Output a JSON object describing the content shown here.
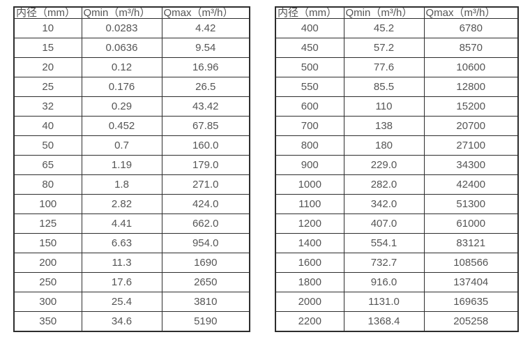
{
  "page": {
    "background_color": "#ffffff",
    "border_color": "#2d2d2d",
    "text_color": "#555555"
  },
  "chart_data": [
    {
      "type": "table",
      "title": "",
      "headers": [
        "内径（mm）",
        "Qmin（m³/h）",
        "Qmax（m³/h）"
      ],
      "rows": [
        [
          "10",
          "0.0283",
          "4.42"
        ],
        [
          "15",
          "0.0636",
          "9.54"
        ],
        [
          "20",
          "0.12",
          "16.96"
        ],
        [
          "25",
          "0.176",
          "26.5"
        ],
        [
          "32",
          "0.29",
          "43.42"
        ],
        [
          "40",
          "0.452",
          "67.85"
        ],
        [
          "50",
          "0.7",
          "160.0"
        ],
        [
          "65",
          "1.19",
          "179.0"
        ],
        [
          "80",
          "1.8",
          "271.0"
        ],
        [
          "100",
          "2.82",
          "424.0"
        ],
        [
          "125",
          "4.41",
          "662.0"
        ],
        [
          "150",
          "6.63",
          "954.0"
        ],
        [
          "200",
          "11.3",
          "1690"
        ],
        [
          "250",
          "17.6",
          "2650"
        ],
        [
          "300",
          "25.4",
          "3810"
        ],
        [
          "350",
          "34.6",
          "5190"
        ]
      ]
    },
    {
      "type": "table",
      "title": "",
      "headers": [
        "内径（mm）",
        "Qmin（m³/h）",
        "Qmax（m³/h）"
      ],
      "rows": [
        [
          "400",
          "45.2",
          "6780"
        ],
        [
          "450",
          "57.2",
          "8570"
        ],
        [
          "500",
          "77.6",
          "10600"
        ],
        [
          "550",
          "85.5",
          "12800"
        ],
        [
          "600",
          "110",
          "15200"
        ],
        [
          "700",
          "138",
          "20700"
        ],
        [
          "800",
          "180",
          "27100"
        ],
        [
          "900",
          "229.0",
          "34300"
        ],
        [
          "1000",
          "282.0",
          "42400"
        ],
        [
          "1100",
          "342.0",
          "51300"
        ],
        [
          "1200",
          "407.0",
          "61000"
        ],
        [
          "1400",
          "554.1",
          "83121"
        ],
        [
          "1600",
          "732.7",
          "108566"
        ],
        [
          "1800",
          "916.0",
          "137404"
        ],
        [
          "2000",
          "1131.0",
          "169635"
        ],
        [
          "2200",
          "1368.4",
          "205258"
        ]
      ]
    }
  ]
}
